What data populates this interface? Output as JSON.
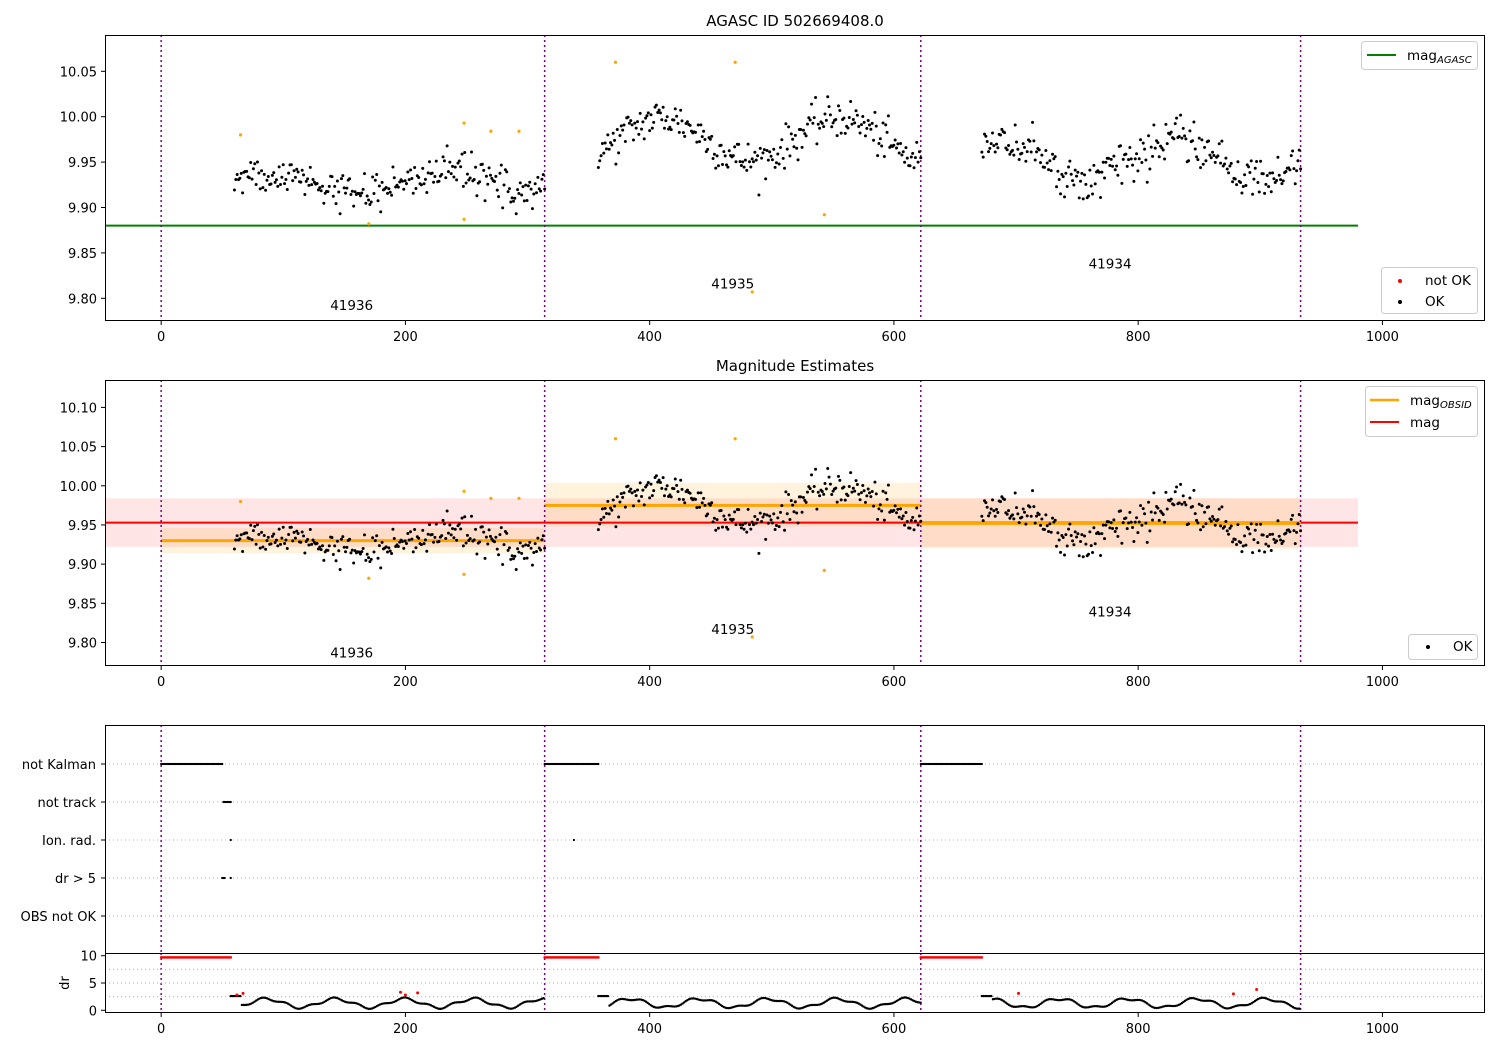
{
  "chart_data": [
    {
      "type": "scatter",
      "title": "AGASC ID 502669408.0",
      "xlabel": "",
      "ylabel": "",
      "xlim": [
        -46,
        1084
      ],
      "ylim": [
        9.775,
        10.09
      ],
      "xticks": [
        0,
        200,
        400,
        600,
        800,
        1000
      ],
      "xtick_labels": [
        "0",
        "200",
        "400",
        "600",
        "800",
        "1000"
      ],
      "yticks": [
        9.8,
        9.85,
        9.9,
        9.95,
        10.0,
        10.05
      ],
      "ytick_labels": [
        "9.80",
        "9.85",
        "9.90",
        "9.95",
        "10.00",
        "10.05"
      ],
      "vlines": [
        0,
        314,
        622,
        933
      ],
      "mag_agasc": 9.88,
      "mag_agasc_xrange": [
        -46,
        980
      ],
      "annotations": [
        {
          "text": "41936",
          "x": 156,
          "y": 9.787
        },
        {
          "text": "41935",
          "x": 468,
          "y": 9.811
        },
        {
          "text": "41934",
          "x": 777,
          "y": 9.833
        }
      ],
      "legend_top": {
        "placement": "top-right",
        "entries": [
          {
            "label": "mag",
            "sub": "AGASC",
            "color": "#008000"
          }
        ]
      },
      "legend_bottom": {
        "placement": "lower-right",
        "entries": [
          {
            "label": "not OK",
            "color": "#ff0000"
          },
          {
            "label": "OK",
            "color": "#000000"
          }
        ]
      },
      "outliers": [
        {
          "x": 65,
          "y": 9.98
        },
        {
          "x": 248,
          "y": 9.993
        },
        {
          "x": 270,
          "y": 9.984
        },
        {
          "x": 293,
          "y": 9.984
        },
        {
          "x": 372,
          "y": 10.06
        },
        {
          "x": 470,
          "y": 10.06
        },
        {
          "x": 484,
          "y": 9.807
        },
        {
          "x": 543,
          "y": 9.892
        },
        {
          "x": 170,
          "y": 9.882
        },
        {
          "x": 248,
          "y": 9.887
        }
      ],
      "ok_segments": [
        {
          "x0": 60,
          "x1": 314,
          "n": 230,
          "base": 9.928,
          "amp": 0.018,
          "noise": 0.02
        },
        {
          "x0": 358,
          "x1": 622,
          "n": 240,
          "base": 9.975,
          "amp": 0.04,
          "noise": 0.02
        },
        {
          "x0": 672,
          "x1": 933,
          "n": 240,
          "base": 9.952,
          "amp": 0.035,
          "noise": 0.02
        }
      ],
      "outlier_color": "#ffa500"
    },
    {
      "type": "scatter",
      "title": "Magnitude Estimates",
      "xlabel": "",
      "ylabel": "",
      "xlim": [
        -46,
        1084
      ],
      "ylim": [
        9.77,
        10.135
      ],
      "xticks": [
        0,
        200,
        400,
        600,
        800,
        1000
      ],
      "xtick_labels": [
        "0",
        "200",
        "400",
        "600",
        "800",
        "1000"
      ],
      "yticks": [
        9.8,
        9.85,
        9.9,
        9.95,
        10.0,
        10.05,
        10.1
      ],
      "ytick_labels": [
        "9.80",
        "9.85",
        "9.90",
        "9.95",
        "10.00",
        "10.05",
        "10.10"
      ],
      "vlines": [
        0,
        314,
        622,
        933
      ],
      "mag": 9.953,
      "mag_band": [
        9.922,
        9.984
      ],
      "mag_xrange": [
        -46,
        980
      ],
      "mag_obsid": [
        {
          "x0": 0,
          "x1": 314,
          "y": 9.93,
          "band": [
            9.914,
            9.946
          ]
        },
        {
          "x0": 314,
          "x1": 622,
          "y": 9.975,
          "band": [
            9.948,
            10.004
          ]
        },
        {
          "x0": 622,
          "x1": 933,
          "y": 9.952,
          "band": [
            9.92,
            9.984
          ]
        }
      ],
      "annotations": [
        {
          "text": "41936",
          "x": 156,
          "y": 9.781
        },
        {
          "text": "41935",
          "x": 468,
          "y": 9.811
        },
        {
          "text": "41934",
          "x": 777,
          "y": 9.833
        }
      ],
      "legend_top": {
        "placement": "top-right",
        "entries": [
          {
            "label": "mag",
            "sub": "OBSID",
            "color": "#ffa500"
          },
          {
            "label": "mag",
            "sub": "",
            "color": "#ff0000"
          }
        ]
      },
      "legend_bottom": {
        "placement": "lower-right",
        "entries": [
          {
            "label": "OK",
            "color": "#000000"
          }
        ]
      }
    },
    {
      "type": "scatter",
      "title": "",
      "categories": [
        "not Kalman",
        "not track",
        "Ion. rad.",
        "dr > 5",
        "OBS not OK"
      ],
      "xlim": [
        -46,
        1084
      ],
      "flags": {
        "not Kalman": [
          [
            0,
            50
          ],
          [
            314,
            358
          ],
          [
            622,
            672
          ]
        ],
        "not track": [
          [
            51,
            57
          ]
        ],
        "Ion. rad.": [
          [
            57,
            57
          ],
          [
            338,
            338
          ]
        ],
        "dr > 5": [
          [
            50,
            52
          ],
          [
            57,
            57
          ]
        ],
        "OBS not OK": []
      }
    },
    {
      "type": "scatter",
      "title": "",
      "ylabel": "dr",
      "xlim": [
        -46,
        1084
      ],
      "ylim": [
        -0.5,
        10.5
      ],
      "yticks": [
        0,
        5,
        10
      ],
      "ytick_labels": [
        "0",
        "5",
        "10"
      ],
      "xticks": [
        0,
        200,
        400,
        600,
        800,
        1000
      ],
      "xtick_labels": [
        "0",
        "200",
        "400",
        "600",
        "800",
        "1000"
      ],
      "red_runs": [
        {
          "x0": 0,
          "x1": 57,
          "y": 9.7
        },
        {
          "x0": 314,
          "x1": 358,
          "y": 9.7
        },
        {
          "x0": 622,
          "x1": 672,
          "y": 9.7
        }
      ],
      "red_spots": [
        {
          "x": 62,
          "y": 2.8
        },
        {
          "x": 67,
          "y": 3.1
        },
        {
          "x": 196,
          "y": 3.3
        },
        {
          "x": 200,
          "y": 2.8
        },
        {
          "x": 210,
          "y": 3.2
        },
        {
          "x": 702,
          "y": 3.1
        },
        {
          "x": 878,
          "y": 3.0
        },
        {
          "x": 897,
          "y": 3.8
        }
      ]
    }
  ]
}
